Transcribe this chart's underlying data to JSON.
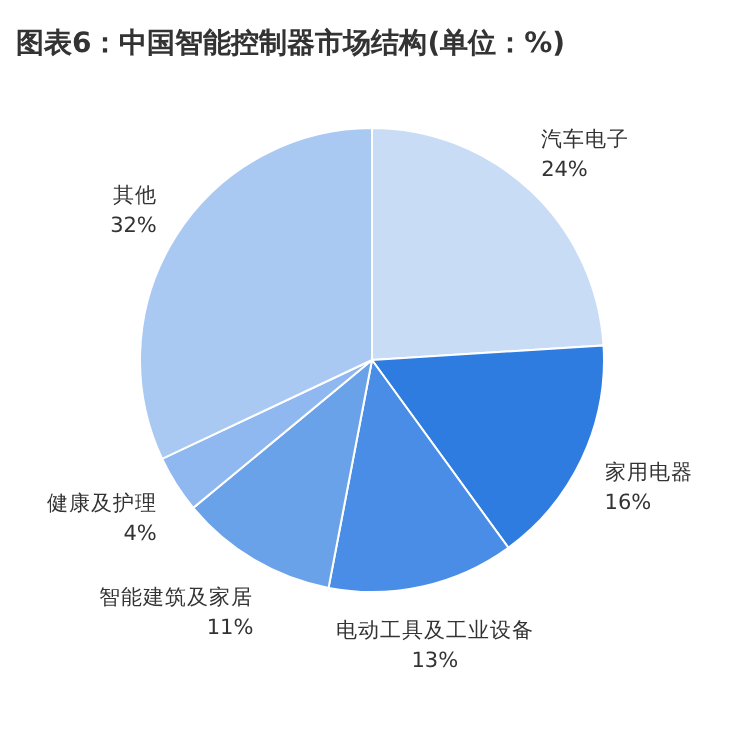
{
  "chart_data": {
    "type": "pie",
    "title": "图表6：中国智能控制器市场结构(单位：%)",
    "categories": [
      "汽车电子",
      "家用电器",
      "电动工具及工业设备",
      "智能建筑及家居",
      "健康及护理",
      "其他"
    ],
    "values": [
      24,
      16,
      13,
      11,
      4,
      32
    ],
    "value_labels": [
      "24%",
      "16%",
      "13%",
      "11%",
      "4%",
      "32%"
    ],
    "colors": [
      "#c9dcf6",
      "#2e7ce0",
      "#4a8de6",
      "#6aa2ea",
      "#8eb8ef",
      "#a9c9f3"
    ]
  }
}
